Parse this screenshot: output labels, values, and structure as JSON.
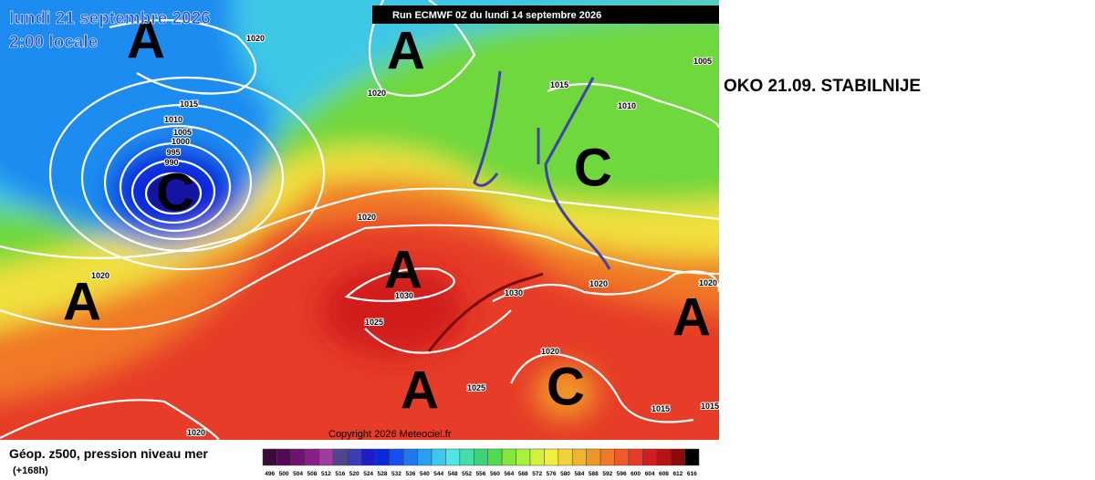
{
  "header": {
    "date": "lundi 21 septembre 2026",
    "time": "2:00 locale",
    "run": "Run ECMWF 0Z du lundi 14 septembre 2026"
  },
  "note": "OKO 21.09. STABILNIJE",
  "map": {
    "pressure_centers": [
      "A",
      "A",
      "C",
      "C",
      "A",
      "A",
      "A",
      "A",
      "C"
    ],
    "isobar_labels": [
      "1020",
      "1015",
      "1010",
      "1005",
      "1000",
      "995",
      "990",
      "1020",
      "1015",
      "1010",
      "1005",
      "1020",
      "1020",
      "1030",
      "1030",
      "1025",
      "1020",
      "1020",
      "1020",
      "1025",
      "1015",
      "1020",
      "1015"
    ],
    "copyright": "Copyright 2026 Meteociel.fr"
  },
  "legend": {
    "title": "Géop. z500, pression niveau mer",
    "lead": "(+168h)",
    "scale": [
      496,
      500,
      504,
      508,
      512,
      516,
      520,
      524,
      528,
      532,
      536,
      540,
      544,
      548,
      552,
      556,
      560,
      564,
      568,
      572,
      576,
      580,
      584,
      588,
      592,
      596,
      600,
      604,
      608,
      612,
      616
    ],
    "colors": [
      "#3a0a3a",
      "#550a55",
      "#6e146e",
      "#8c1e8c",
      "#a03ca0",
      "#50468c",
      "#3c3cb4",
      "#1e1ec8",
      "#0a28dc",
      "#1450f0",
      "#1e78f0",
      "#28a0f0",
      "#3cc8f0",
      "#50e6e6",
      "#46dcaa",
      "#3cd278",
      "#50dc50",
      "#82e63c",
      "#aaf03c",
      "#d2f03c",
      "#f0f03c",
      "#f0d23c",
      "#f0b432",
      "#f09628",
      "#f07828",
      "#f05a28",
      "#e63c28",
      "#d21e1e",
      "#b41414",
      "#8c0a0a",
      "#000000"
    ]
  }
}
